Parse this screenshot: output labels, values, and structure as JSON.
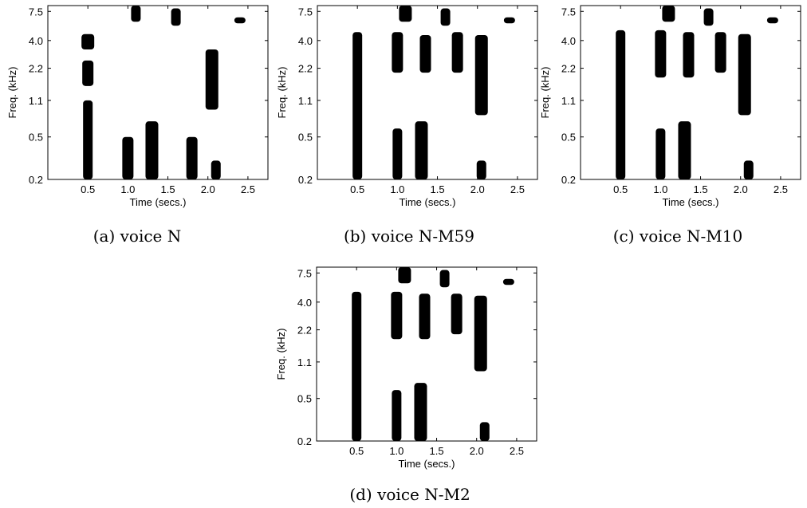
{
  "chart_data": [
    {
      "type": "heatmap",
      "caption": "(a) voice N",
      "xlabel": "Time (secs.)",
      "ylabel": "Freq. (kHz)",
      "xlim": [
        0,
        2.75
      ],
      "ylim": [
        0.2,
        8.5
      ],
      "y_scale": "log",
      "xticks": [
        0.5,
        1.0,
        1.5,
        2.0,
        2.5
      ],
      "xtick_labels": [
        "0.5",
        "1.0",
        "1.5",
        "2.0",
        "2.5"
      ],
      "yticks": [
        0.2,
        0.5,
        1.1,
        2.2,
        4.0,
        7.5
      ],
      "ytick_labels": [
        "0.2",
        "0.5",
        "1.1",
        "2.2",
        "4.0",
        "7.5"
      ],
      "regions": [
        {
          "t": 0.5,
          "f0": 0.2,
          "f1": 1.1
        },
        {
          "t": 0.5,
          "f0": 1.5,
          "f1": 2.6
        },
        {
          "t": 0.5,
          "f0": 3.3,
          "f1": 4.6
        },
        {
          "t": 1.1,
          "f0": 6.0,
          "f1": 8.5
        },
        {
          "t": 1.0,
          "f0": 0.2,
          "f1": 0.5
        },
        {
          "t": 1.3,
          "f0": 0.2,
          "f1": 0.7
        },
        {
          "t": 1.6,
          "f0": 5.5,
          "f1": 8.0
        },
        {
          "t": 1.8,
          "f0": 0.2,
          "f1": 0.5
        },
        {
          "t": 2.05,
          "f0": 0.9,
          "f1": 3.3
        },
        {
          "t": 2.1,
          "f0": 0.2,
          "f1": 0.3
        },
        {
          "t": 2.4,
          "f0": 5.8,
          "f1": 6.6
        }
      ]
    },
    {
      "type": "heatmap",
      "caption": "(b) voice N-M59",
      "xlabel": "Time (secs.)",
      "ylabel": "Freq. (kHz)",
      "xlim": [
        0,
        2.75
      ],
      "ylim": [
        0.2,
        8.5
      ],
      "y_scale": "log",
      "xticks": [
        0.5,
        1.0,
        1.5,
        2.0,
        2.5
      ],
      "xtick_labels": [
        "0.5",
        "1.0",
        "1.5",
        "2.0",
        "2.5"
      ],
      "yticks": [
        0.2,
        0.5,
        1.1,
        2.2,
        4.0,
        7.5
      ],
      "ytick_labels": [
        "0.2",
        "0.5",
        "1.1",
        "2.2",
        "4.0",
        "7.5"
      ],
      "regions": [
        {
          "t": 0.5,
          "f0": 0.2,
          "f1": 4.8
        },
        {
          "t": 1.0,
          "f0": 2.0,
          "f1": 4.8
        },
        {
          "t": 1.1,
          "f0": 6.0,
          "f1": 8.5
        },
        {
          "t": 1.0,
          "f0": 0.2,
          "f1": 0.6
        },
        {
          "t": 1.35,
          "f0": 2.0,
          "f1": 4.5
        },
        {
          "t": 1.3,
          "f0": 0.2,
          "f1": 0.7
        },
        {
          "t": 1.6,
          "f0": 5.5,
          "f1": 8.0
        },
        {
          "t": 1.75,
          "f0": 2.0,
          "f1": 4.8
        },
        {
          "t": 2.05,
          "f0": 0.8,
          "f1": 4.5
        },
        {
          "t": 2.05,
          "f0": 0.2,
          "f1": 0.3
        },
        {
          "t": 2.4,
          "f0": 5.8,
          "f1": 6.6
        }
      ]
    },
    {
      "type": "heatmap",
      "caption": "(c) voice N-M10",
      "xlabel": "Time (secs.)",
      "ylabel": "Freq. (kHz)",
      "xlim": [
        0,
        2.75
      ],
      "ylim": [
        0.2,
        8.5
      ],
      "y_scale": "log",
      "xticks": [
        0.5,
        1.0,
        1.5,
        2.0,
        2.5
      ],
      "xtick_labels": [
        "0.5",
        "1.0",
        "1.5",
        "2.0",
        "2.5"
      ],
      "yticks": [
        0.2,
        0.5,
        1.1,
        2.2,
        4.0,
        7.5
      ],
      "ytick_labels": [
        "0.2",
        "0.5",
        "1.1",
        "2.2",
        "4.0",
        "7.5"
      ],
      "regions": [
        {
          "t": 0.5,
          "f0": 0.2,
          "f1": 5.0
        },
        {
          "t": 1.0,
          "f0": 1.8,
          "f1": 5.0
        },
        {
          "t": 1.1,
          "f0": 6.0,
          "f1": 8.5
        },
        {
          "t": 1.0,
          "f0": 0.2,
          "f1": 0.6
        },
        {
          "t": 1.35,
          "f0": 1.8,
          "f1": 4.8
        },
        {
          "t": 1.3,
          "f0": 0.2,
          "f1": 0.7
        },
        {
          "t": 1.6,
          "f0": 5.5,
          "f1": 8.0
        },
        {
          "t": 1.75,
          "f0": 2.0,
          "f1": 4.8
        },
        {
          "t": 2.05,
          "f0": 0.8,
          "f1": 4.6
        },
        {
          "t": 2.1,
          "f0": 0.2,
          "f1": 0.3
        },
        {
          "t": 2.4,
          "f0": 5.8,
          "f1": 6.6
        }
      ]
    },
    {
      "type": "heatmap",
      "caption": "(d) voice N-M2",
      "xlabel": "Time (secs.)",
      "ylabel": "Freq. (kHz)",
      "xlim": [
        0,
        2.75
      ],
      "ylim": [
        0.2,
        8.5
      ],
      "y_scale": "log",
      "xticks": [
        0.5,
        1.0,
        1.5,
        2.0,
        2.5
      ],
      "xtick_labels": [
        "0.5",
        "1.0",
        "1.5",
        "2.0",
        "2.5"
      ],
      "yticks": [
        0.2,
        0.5,
        1.1,
        2.2,
        4.0,
        7.5
      ],
      "ytick_labels": [
        "0.2",
        "0.5",
        "1.1",
        "2.2",
        "4.0",
        "7.5"
      ],
      "regions": [
        {
          "t": 0.5,
          "f0": 0.2,
          "f1": 5.0
        },
        {
          "t": 1.0,
          "f0": 1.8,
          "f1": 5.0
        },
        {
          "t": 1.1,
          "f0": 6.0,
          "f1": 8.5
        },
        {
          "t": 1.0,
          "f0": 0.2,
          "f1": 0.6
        },
        {
          "t": 1.35,
          "f0": 1.8,
          "f1": 4.8
        },
        {
          "t": 1.3,
          "f0": 0.2,
          "f1": 0.7
        },
        {
          "t": 1.6,
          "f0": 5.5,
          "f1": 8.0
        },
        {
          "t": 1.75,
          "f0": 2.0,
          "f1": 4.8
        },
        {
          "t": 2.05,
          "f0": 0.9,
          "f1": 4.6
        },
        {
          "t": 2.1,
          "f0": 0.2,
          "f1": 0.3
        },
        {
          "t": 2.4,
          "f0": 5.8,
          "f1": 6.6
        }
      ]
    }
  ]
}
